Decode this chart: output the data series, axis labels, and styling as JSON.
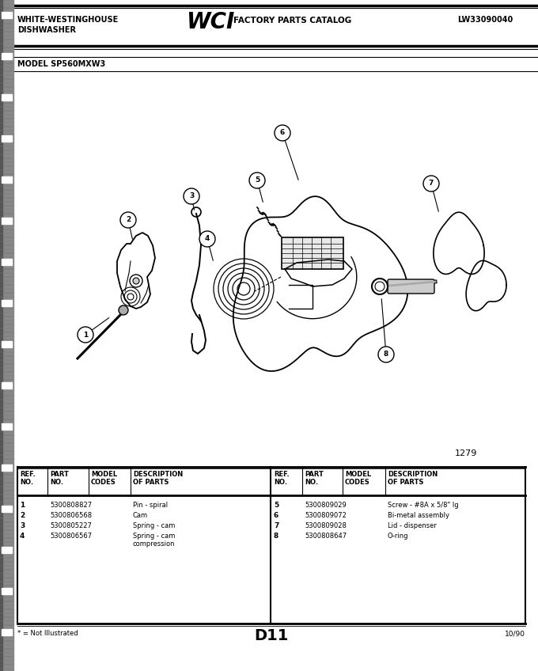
{
  "title_left1": "WHITE-WESTINGHOUSE",
  "title_left2": "DISHWASHER",
  "title_right": "LW33090040",
  "model": "MODEL SP560MXW3",
  "page_num": "1279",
  "page_code": "D11",
  "page_date": "10/90",
  "footnote": "* = Not Illustrated",
  "bg_color": "#ffffff",
  "parts_left": [
    [
      "1",
      "5300808827",
      "",
      "Pin - spiral"
    ],
    [
      "2",
      "5300806568",
      "",
      "Cam"
    ],
    [
      "3",
      "5300805227",
      "",
      "Spring - cam"
    ],
    [
      "4",
      "5300806567",
      "",
      "Spring - cam\ncompression"
    ]
  ],
  "parts_right": [
    [
      "5",
      "5300809029",
      "",
      "Screw - #8A x 5/8\" lg"
    ],
    [
      "6",
      "5300809072",
      "",
      "Bi-metal assembly"
    ],
    [
      "7",
      "5300809028",
      "",
      "Lid - dispenser"
    ],
    [
      "8",
      "5300808647",
      "",
      "O-ring"
    ]
  ]
}
